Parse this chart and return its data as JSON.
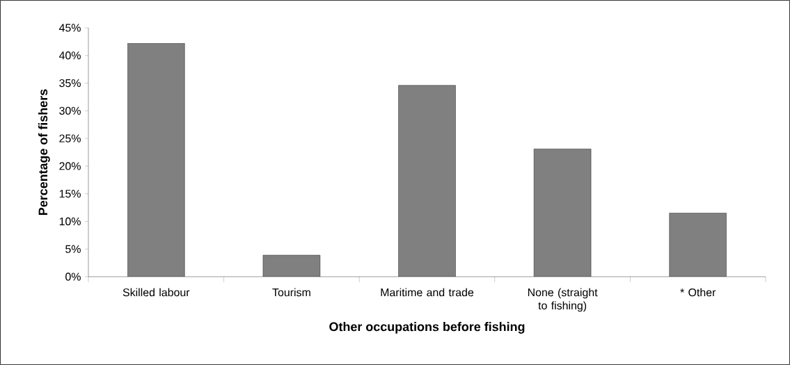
{
  "chart_data": {
    "type": "bar",
    "xlabel": "Other occupations before fishing",
    "ylabel": "Percentage of fishers",
    "categories": [
      "Skilled labour",
      "Tourism",
      "Maritime and trade",
      "None (straight to fishing)",
      "* Other"
    ],
    "values": [
      42.2,
      3.9,
      34.6,
      23.1,
      11.5
    ],
    "color": "#808080",
    "ylim": [
      0,
      45
    ],
    "yticks": [
      {
        "value": 0,
        "label": "0%"
      },
      {
        "value": 5,
        "label": "5%"
      },
      {
        "value": 10,
        "label": "10%"
      },
      {
        "value": 15,
        "label": "15%"
      },
      {
        "value": 20,
        "label": "20%"
      },
      {
        "value": 25,
        "label": "25%"
      },
      {
        "value": 30,
        "label": "30%"
      },
      {
        "value": 35,
        "label": "35%"
      },
      {
        "value": 40,
        "label": "40%"
      },
      {
        "value": 45,
        "label": "45%"
      }
    ],
    "grid": false
  }
}
